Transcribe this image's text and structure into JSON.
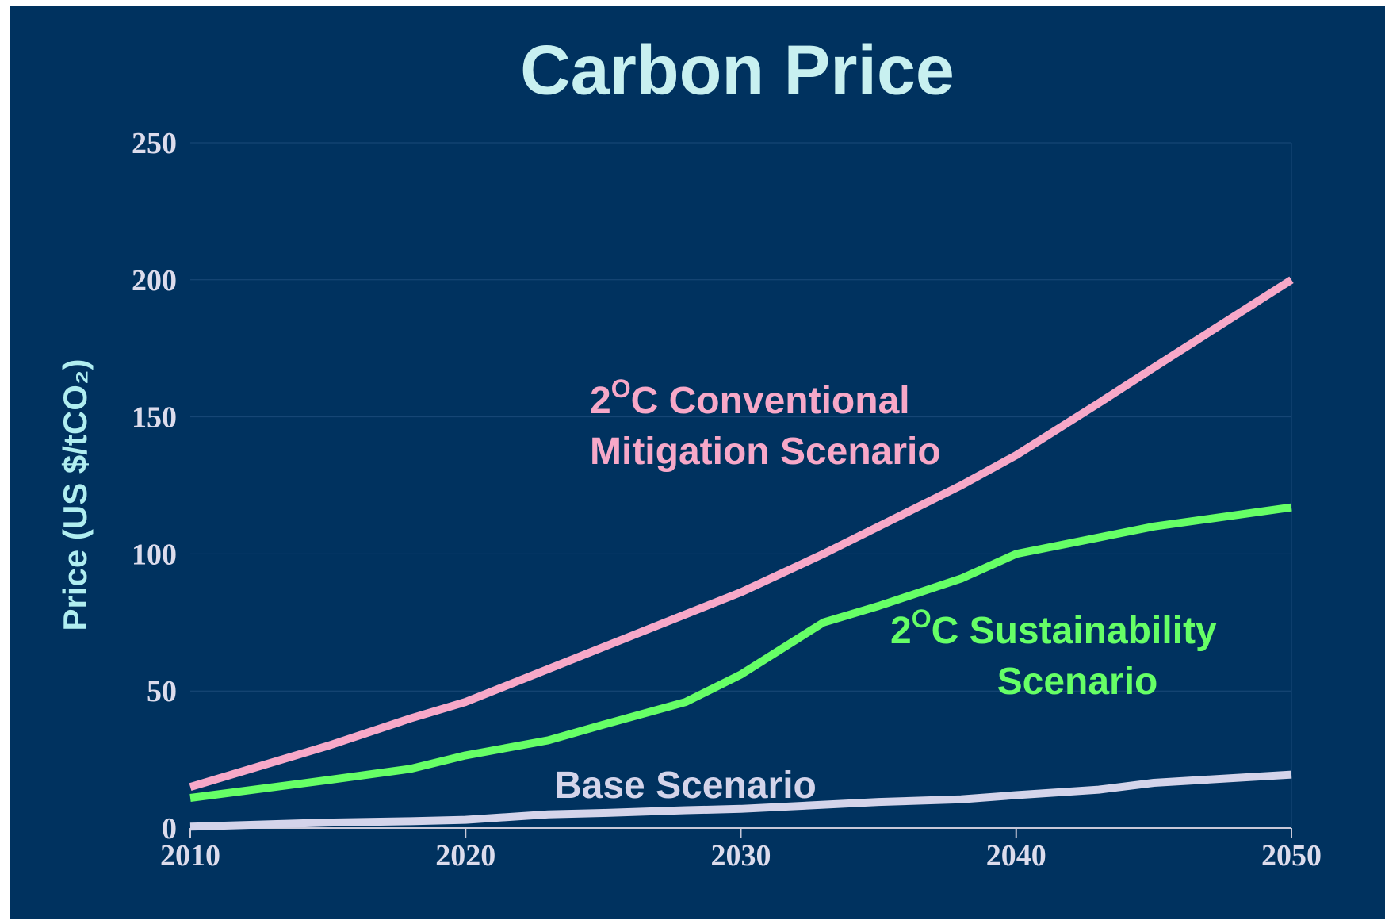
{
  "chart_data": {
    "type": "line",
    "title": "Carbon Price",
    "y_label": "Price (US $/tCO₂)",
    "x": [
      2010,
      2015,
      2018,
      2020,
      2023,
      2025,
      2028,
      2030,
      2033,
      2035,
      2038,
      2040,
      2043,
      2045,
      2050
    ],
    "series": [
      {
        "name": "2OC Conventional Mitigation Scenario",
        "color": "#f7a8c8",
        "values": [
          15,
          30,
          40,
          46,
          58,
          66,
          78,
          86,
          100,
          110,
          125,
          136,
          155,
          168,
          200
        ]
      },
      {
        "name": "2OC Sustainability Scenario",
        "color": "#66ff66",
        "values": [
          11,
          17.5,
          21.6,
          26.5,
          32,
          37.7,
          46,
          56,
          75,
          81,
          91,
          100,
          106,
          110,
          117
        ]
      },
      {
        "name": "Base Scenario",
        "color": "#d4d4ea",
        "values": [
          0.5,
          2,
          2.5,
          3,
          5,
          5.5,
          6.5,
          7,
          8.5,
          9.5,
          10.5,
          12,
          14,
          16.5,
          19.5
        ]
      }
    ],
    "annotations": [
      {
        "parts": [
          "2",
          "O",
          "C Conventional"
        ],
        "line2": "Mitigation Scenario"
      },
      {
        "parts": [
          "2",
          "O",
          "C Sustainability"
        ],
        "line2": "Scenario"
      },
      {
        "parts": [
          "Base Scenario"
        ]
      }
    ],
    "xlim": [
      2010,
      2050
    ],
    "xticks": [
      2010,
      2020,
      2030,
      2040,
      2050
    ],
    "ylim": [
      0,
      250
    ],
    "yticks": [
      0,
      50,
      100,
      150,
      200,
      250
    ],
    "grid": true
  }
}
